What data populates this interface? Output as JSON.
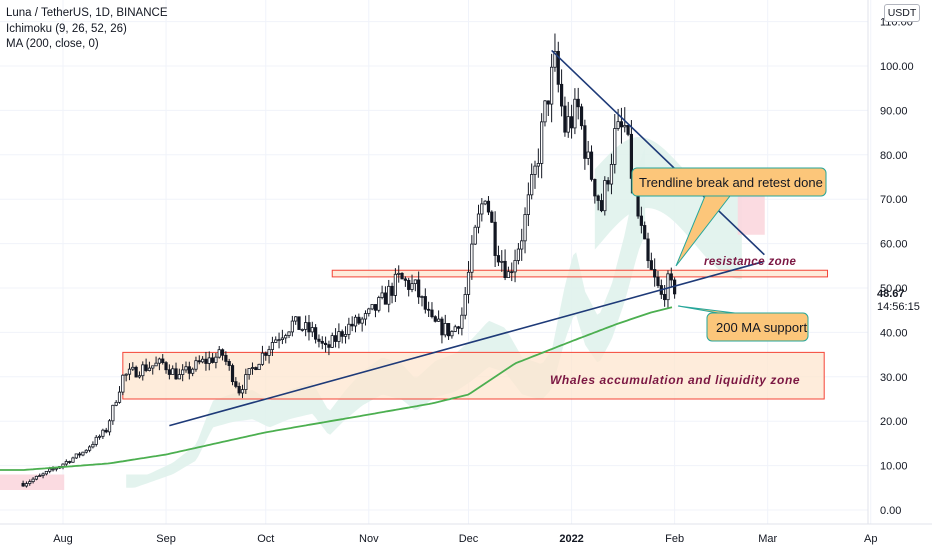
{
  "legend": {
    "symbol": "Luna / TetherUS, 1D, BINANCE",
    "indicator1": "Ichimoku (9, 26, 52, 26)",
    "indicator2": "MA (200, close, 0)"
  },
  "currency_badge": "USDT",
  "last_price": "48.67",
  "countdown": "14:56:15",
  "colors": {
    "candle": "#131722",
    "ma200": "#4caf50",
    "cloud_bull": "#e0f2ec",
    "cloud_bear": "#fbd7de",
    "trendline": "#1e3a78",
    "zone_fill": "#fde6cf",
    "zone_border": "#f44336",
    "callout_fill": "#fcc67a",
    "callout_border": "#26a69a",
    "annotation_text": "#7b1743"
  },
  "annotations": {
    "trendline_callout": "Trendline break and retest done",
    "ma_callout": "200 MA support",
    "resistance_label": "resistance zone",
    "whales_label": "Whales accumulation and liquidity zone"
  },
  "chart_data": {
    "type": "candlestick",
    "title": "Luna / TetherUS, 1D, BINANCE",
    "ylim": [
      -2,
      112
    ],
    "y_ticks": [
      "110.00",
      "100.00",
      "90.00",
      "80.00",
      "70.00",
      "60.00",
      "50.00",
      "40.00",
      "30.00",
      "20.00",
      "10.00",
      "0.00"
    ],
    "x_ticks": [
      "Aug",
      "Sep",
      "Oct",
      "Nov",
      "Dec",
      "2022",
      "Feb",
      "Mar",
      "Ap"
    ],
    "close_points": [
      [
        "2021-07-20",
        6.0
      ],
      [
        "2021-07-25",
        7.5
      ],
      [
        "2021-07-31",
        10.0
      ],
      [
        "2021-08-07",
        13.0
      ],
      [
        "2021-08-14",
        18.0
      ],
      [
        "2021-08-19",
        30.0
      ],
      [
        "2021-08-25",
        32.0
      ],
      [
        "2021-08-31",
        33.0
      ],
      [
        "2021-09-05",
        30.0
      ],
      [
        "2021-09-11",
        33.0
      ],
      [
        "2021-09-18",
        35.0
      ],
      [
        "2021-09-23",
        27.0
      ],
      [
        "2021-09-28",
        33.0
      ],
      [
        "2021-10-03",
        38.0
      ],
      [
        "2021-10-09",
        42.0
      ],
      [
        "2021-10-15",
        40.0
      ],
      [
        "2021-10-19",
        36.0
      ],
      [
        "2021-10-25",
        41.0
      ],
      [
        "2021-10-31",
        43.0
      ],
      [
        "2021-11-05",
        47.0
      ],
      [
        "2021-11-10",
        52.0
      ],
      [
        "2021-11-15",
        50.0
      ],
      [
        "2021-11-20",
        42.0
      ],
      [
        "2021-11-26",
        40.0
      ],
      [
        "2021-11-29",
        44.0
      ],
      [
        "2021-12-03",
        62.0
      ],
      [
        "2021-12-06",
        72.0
      ],
      [
        "2021-12-09",
        60.0
      ],
      [
        "2021-12-13",
        53.0
      ],
      [
        "2021-12-17",
        62.0
      ],
      [
        "2021-12-21",
        76.0
      ],
      [
        "2021-12-25",
        94.0
      ],
      [
        "2021-12-27",
        100.0
      ],
      [
        "2021-12-30",
        86.0
      ],
      [
        "2022-01-03",
        90.0
      ],
      [
        "2022-01-06",
        78.0
      ],
      [
        "2022-01-10",
        68.0
      ],
      [
        "2022-01-14",
        84.0
      ],
      [
        "2022-01-17",
        86.0
      ],
      [
        "2022-01-21",
        66.0
      ],
      [
        "2022-01-24",
        55.0
      ],
      [
        "2022-01-28",
        48.0
      ],
      [
        "2022-01-30",
        51.0
      ],
      [
        "2022-02-01",
        48.67
      ]
    ],
    "ma200": [
      [
        "2021-07-20",
        9.0
      ],
      [
        "2021-08-15",
        10.5
      ],
      [
        "2021-09-01",
        12.5
      ],
      [
        "2021-10-01",
        17.5
      ],
      [
        "2021-11-01",
        21.5
      ],
      [
        "2021-11-20",
        24.0
      ],
      [
        "2021-12-01",
        26.0
      ],
      [
        "2021-12-15",
        33.0
      ],
      [
        "2022-01-01",
        38.0
      ],
      [
        "2022-01-15",
        42.0
      ],
      [
        "2022-01-25",
        44.5
      ],
      [
        "2022-02-01",
        45.8
      ]
    ],
    "trendline_support": [
      [
        "2021-09-02",
        19.0
      ],
      [
        "2022-02-28",
        56.0
      ]
    ],
    "trendline_resistance": [
      [
        "2021-12-26",
        103.5
      ],
      [
        "2022-02-28",
        57.5
      ]
    ],
    "resistance_zone": {
      "y_from": 52.5,
      "y_to": 54.0,
      "x_from": "2021-10-21",
      "x_to": "2022-03-19"
    },
    "whales_zone": {
      "y_from": 25.0,
      "y_to": 35.5,
      "x_from": "2021-08-19",
      "x_to": "2022-03-18"
    }
  }
}
